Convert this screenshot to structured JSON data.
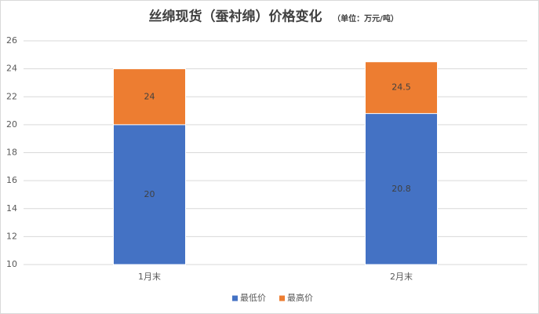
{
  "chart_data": {
    "type": "bar",
    "title": "丝绵现货（蚕衬绵）价格变化",
    "subtitle": "（单位：万元/吨）",
    "categories": [
      "1月末",
      "2月末"
    ],
    "series": [
      {
        "name": "最低价",
        "color": "#4472c4",
        "values": [
          20,
          20.8
        ]
      },
      {
        "name": "最高价",
        "color": "#ed7d31",
        "values": [
          24,
          24.5
        ]
      }
    ],
    "ylim": [
      10,
      26
    ],
    "yticks": [
      10,
      12,
      14,
      16,
      18,
      20,
      22,
      24,
      26
    ],
    "grid": true,
    "legend": "bottom"
  }
}
